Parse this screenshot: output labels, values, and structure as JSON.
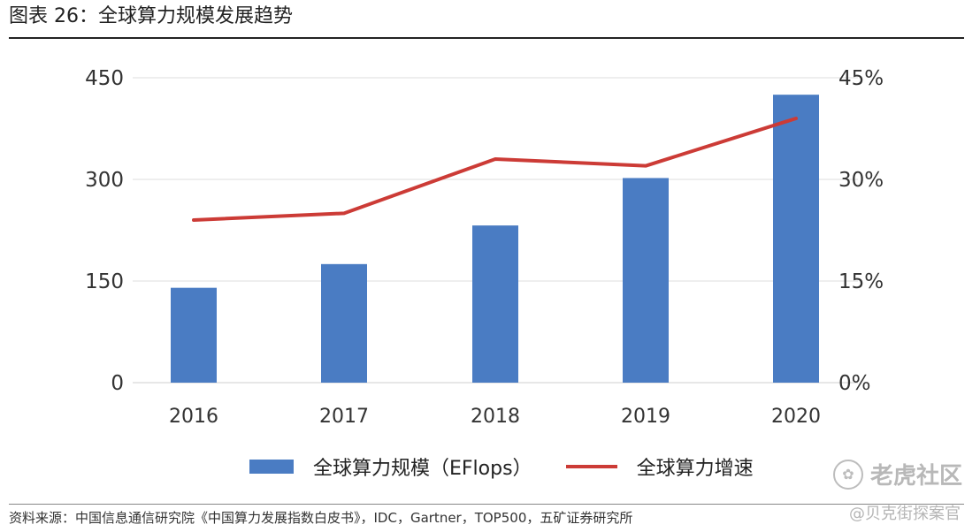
{
  "figure": {
    "title": "图表 26：全球算力规模发展趋势",
    "source": "资料来源：中国信息通信研究院《中国算力发展指数白皮书》，IDC，Gartner，TOP500，五矿证券研究所"
  },
  "watermark": {
    "main": "老虎社区",
    "sub": "@贝克街探案官",
    "icon": "paw-icon"
  },
  "chart_data": {
    "type": "bar",
    "categories": [
      "2016",
      "2017",
      "2018",
      "2019",
      "2020"
    ],
    "series": [
      {
        "name": "全球算力规模（EFlops）",
        "type": "bar",
        "axis": "left",
        "color": "#4a7cc3",
        "values": [
          140,
          175,
          232,
          302,
          425
        ]
      },
      {
        "name": "全球算力增速",
        "type": "line",
        "axis": "right",
        "color": "#cc3b36",
        "values": [
          24,
          25,
          33,
          32,
          39
        ]
      }
    ],
    "y_left": {
      "ticks": [
        "0",
        "150",
        "300",
        "450"
      ],
      "min": 0,
      "max": 450
    },
    "y_right": {
      "ticks": [
        "0%",
        "15%",
        "30%",
        "45%"
      ],
      "min": 0,
      "max": 45
    },
    "grid": true,
    "legend_position": "bottom"
  }
}
